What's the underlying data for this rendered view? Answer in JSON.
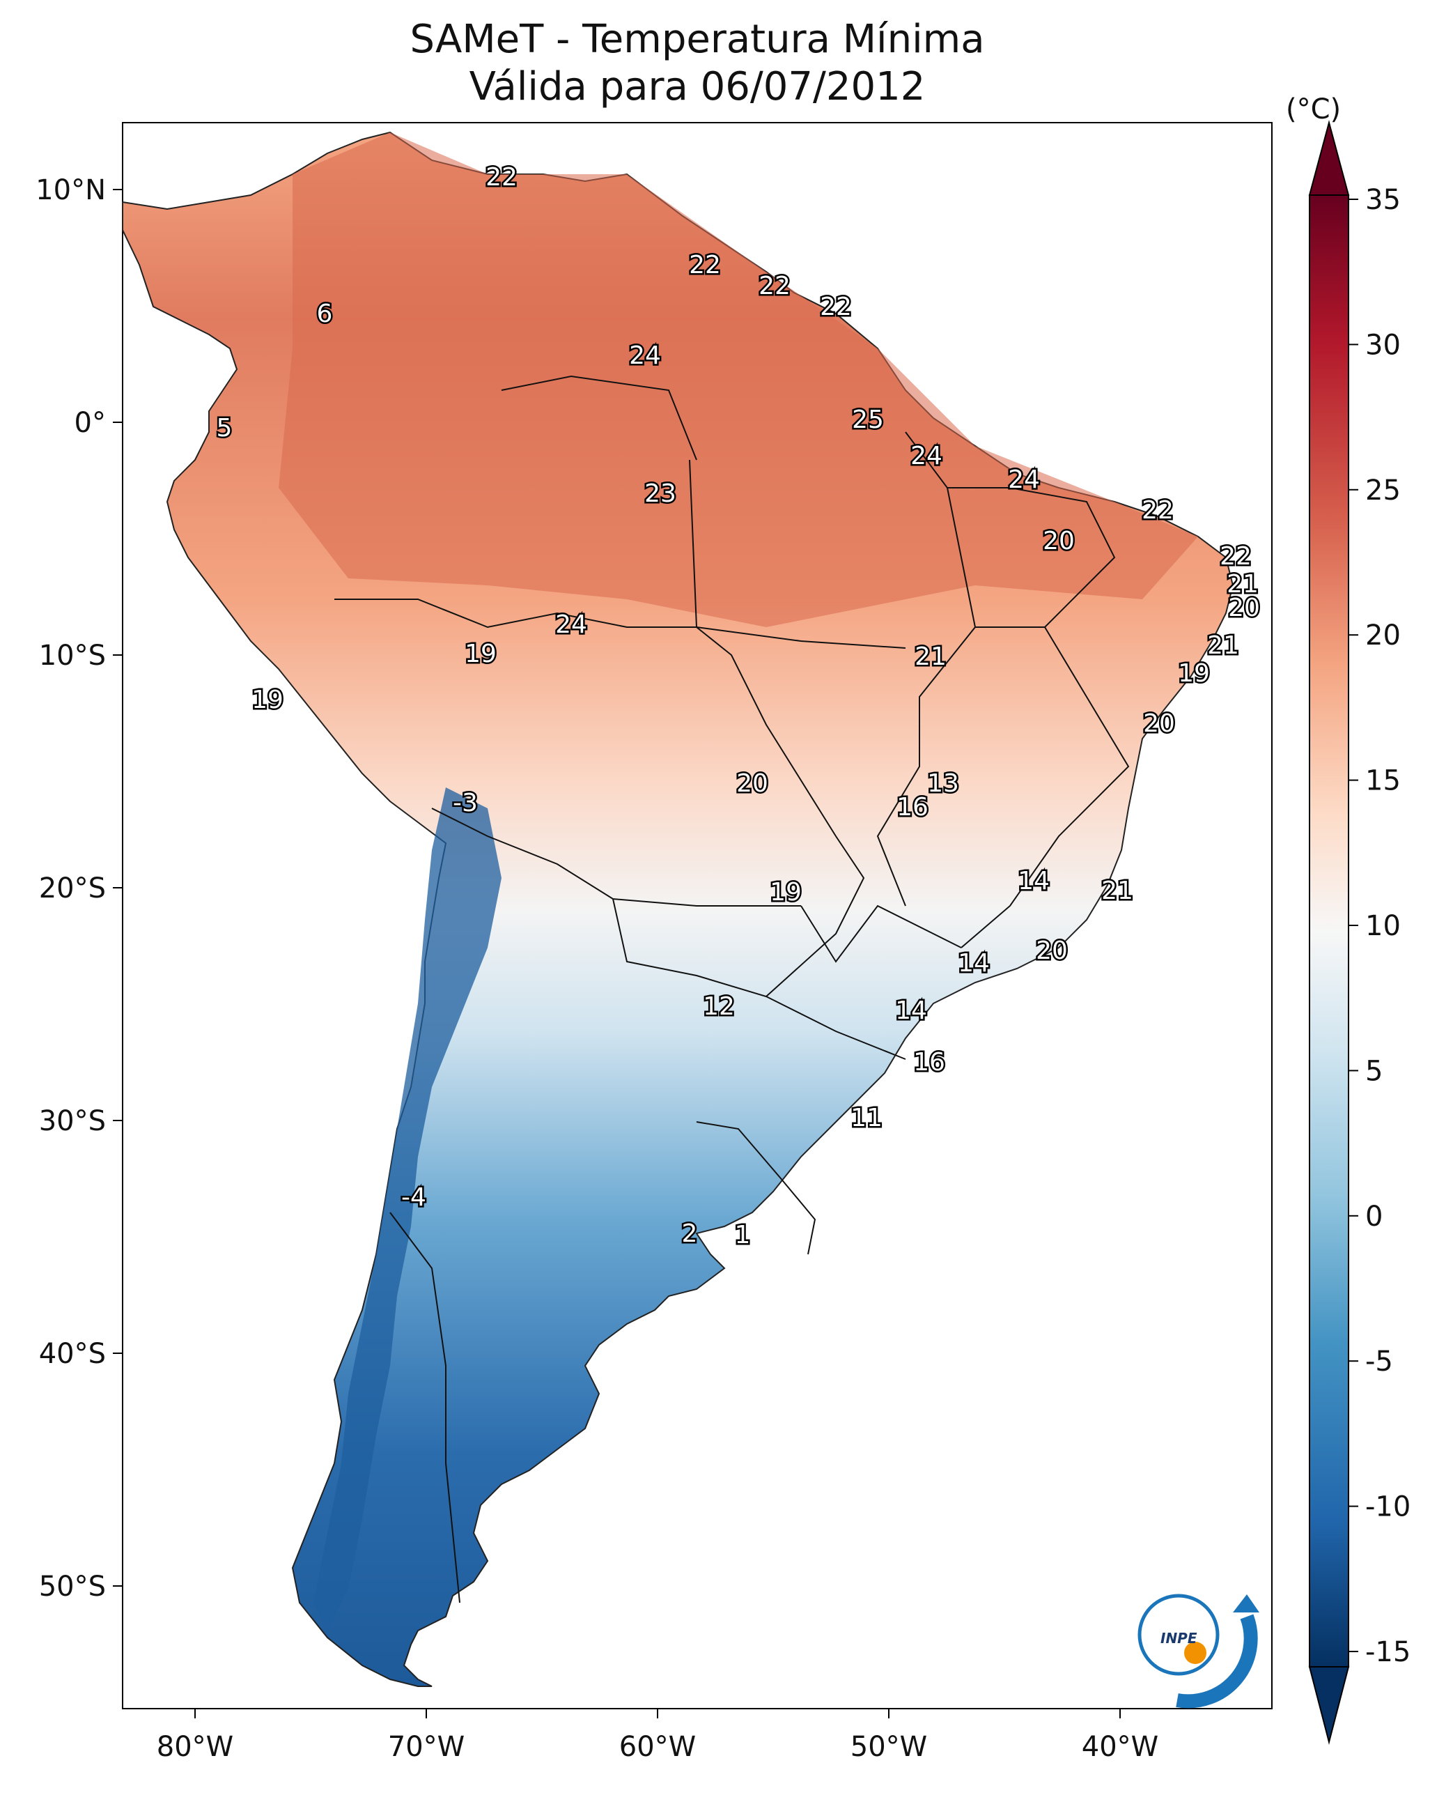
{
  "title": "SAMeT - Temperatura Mínima",
  "subtitle": "Válida para 06/07/2012",
  "units": "(°C)",
  "lon_ticks": [
    "80°W",
    "70°W",
    "60°W",
    "50°W",
    "40°W"
  ],
  "lat_ticks": [
    "10°N",
    "0°",
    "10°S",
    "20°S",
    "30°S",
    "40°S",
    "50°S"
  ],
  "colorbar": {
    "ticks": [
      "35",
      "30",
      "25",
      "20",
      "15",
      "10",
      "5",
      "0",
      "-5",
      "-10",
      "-15"
    ],
    "colors": [
      "#053061",
      "#2166ac",
      "#4393c3",
      "#92c5de",
      "#d1e5f0",
      "#f7f7f7",
      "#fddbc7",
      "#f4a582",
      "#d6604d",
      "#b2182b",
      "#67001f"
    ]
  },
  "logo_text": "INPE",
  "station_labels": [
    {
      "text": "22"
    },
    {
      "text": "6"
    },
    {
      "text": "22"
    },
    {
      "text": "22"
    },
    {
      "text": "22"
    },
    {
      "text": "24"
    },
    {
      "text": "5"
    },
    {
      "text": "25"
    },
    {
      "text": "24"
    },
    {
      "text": "24"
    },
    {
      "text": "23"
    },
    {
      "text": "22"
    },
    {
      "text": "20"
    },
    {
      "text": "22"
    },
    {
      "text": "21"
    },
    {
      "text": "20"
    },
    {
      "text": "24"
    },
    {
      "text": "19"
    },
    {
      "text": "21"
    },
    {
      "text": "21"
    },
    {
      "text": "19"
    },
    {
      "text": "19"
    },
    {
      "text": "20"
    },
    {
      "text": "-3"
    },
    {
      "text": "13"
    },
    {
      "text": "20"
    },
    {
      "text": "16"
    },
    {
      "text": "14"
    },
    {
      "text": "21"
    },
    {
      "text": "19"
    },
    {
      "text": "20"
    },
    {
      "text": "14"
    },
    {
      "text": "12"
    },
    {
      "text": "14"
    },
    {
      "text": "16"
    },
    {
      "text": "11"
    },
    {
      "text": "-4"
    },
    {
      "text": "2"
    },
    {
      "text": "1"
    }
  ]
}
